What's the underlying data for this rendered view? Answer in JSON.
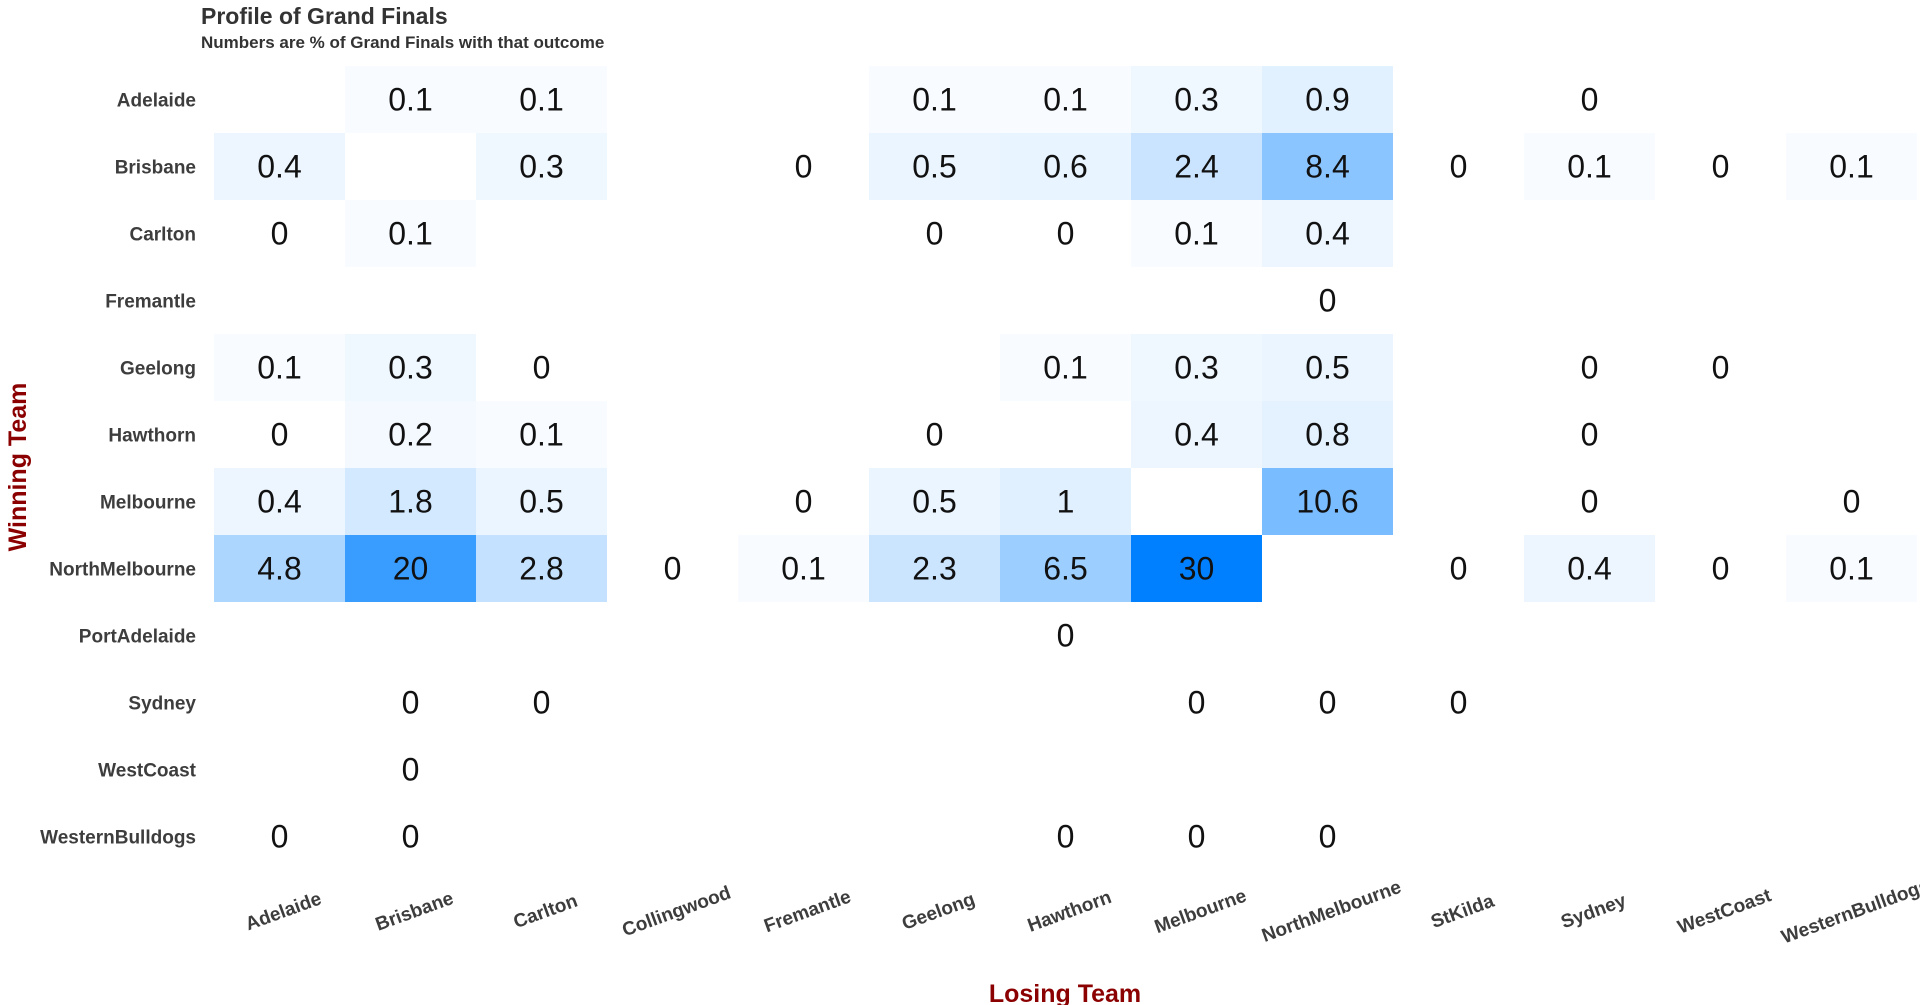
{
  "chart_data": {
    "type": "heatmap",
    "title": "Profile of Grand Finals",
    "subtitle": "Numbers are % of Grand Finals with that outcome",
    "xlabel": "Losing Team",
    "ylabel": "Winning Team",
    "x_categories": [
      "Adelaide",
      "Brisbane",
      "Carlton",
      "Collingwood",
      "Fremantle",
      "Geelong",
      "Hawthorn",
      "Melbourne",
      "NorthMelbourne",
      "StKilda",
      "Sydney",
      "WestCoast",
      "WesternBulldogs"
    ],
    "y_categories": [
      "Adelaide",
      "Brisbane",
      "Carlton",
      "Fremantle",
      "Geelong",
      "Hawthorn",
      "Melbourne",
      "NorthMelbourne",
      "PortAdelaide",
      "Sydney",
      "WestCoast",
      "WesternBulldogs"
    ],
    "color_scale": {
      "low": "#ffffff",
      "high": "#0080ff",
      "min": 0,
      "max": 30
    },
    "cells": [
      {
        "winner": "Adelaide",
        "loser": "Brisbane",
        "value": 0.1
      },
      {
        "winner": "Adelaide",
        "loser": "Carlton",
        "value": 0.1
      },
      {
        "winner": "Adelaide",
        "loser": "Geelong",
        "value": 0.1
      },
      {
        "winner": "Adelaide",
        "loser": "Hawthorn",
        "value": 0.1
      },
      {
        "winner": "Adelaide",
        "loser": "Melbourne",
        "value": 0.3
      },
      {
        "winner": "Adelaide",
        "loser": "NorthMelbourne",
        "value": 0.9
      },
      {
        "winner": "Adelaide",
        "loser": "Sydney",
        "value": 0
      },
      {
        "winner": "Brisbane",
        "loser": "Adelaide",
        "value": 0.4
      },
      {
        "winner": "Brisbane",
        "loser": "Carlton",
        "value": 0.3
      },
      {
        "winner": "Brisbane",
        "loser": "Fremantle",
        "value": 0
      },
      {
        "winner": "Brisbane",
        "loser": "Geelong",
        "value": 0.5
      },
      {
        "winner": "Brisbane",
        "loser": "Hawthorn",
        "value": 0.6
      },
      {
        "winner": "Brisbane",
        "loser": "Melbourne",
        "value": 2.4
      },
      {
        "winner": "Brisbane",
        "loser": "NorthMelbourne",
        "value": 8.4
      },
      {
        "winner": "Brisbane",
        "loser": "StKilda",
        "value": 0
      },
      {
        "winner": "Brisbane",
        "loser": "Sydney",
        "value": 0.1
      },
      {
        "winner": "Brisbane",
        "loser": "WestCoast",
        "value": 0
      },
      {
        "winner": "Brisbane",
        "loser": "WesternBulldogs",
        "value": 0.1
      },
      {
        "winner": "Carlton",
        "loser": "Adelaide",
        "value": 0
      },
      {
        "winner": "Carlton",
        "loser": "Brisbane",
        "value": 0.1
      },
      {
        "winner": "Carlton",
        "loser": "Geelong",
        "value": 0
      },
      {
        "winner": "Carlton",
        "loser": "Hawthorn",
        "value": 0
      },
      {
        "winner": "Carlton",
        "loser": "Melbourne",
        "value": 0.1
      },
      {
        "winner": "Carlton",
        "loser": "NorthMelbourne",
        "value": 0.4
      },
      {
        "winner": "Fremantle",
        "loser": "NorthMelbourne",
        "value": 0
      },
      {
        "winner": "Geelong",
        "loser": "Adelaide",
        "value": 0.1
      },
      {
        "winner": "Geelong",
        "loser": "Brisbane",
        "value": 0.3
      },
      {
        "winner": "Geelong",
        "loser": "Carlton",
        "value": 0
      },
      {
        "winner": "Geelong",
        "loser": "Hawthorn",
        "value": 0.1
      },
      {
        "winner": "Geelong",
        "loser": "Melbourne",
        "value": 0.3
      },
      {
        "winner": "Geelong",
        "loser": "NorthMelbourne",
        "value": 0.5
      },
      {
        "winner": "Geelong",
        "loser": "Sydney",
        "value": 0
      },
      {
        "winner": "Geelong",
        "loser": "WestCoast",
        "value": 0
      },
      {
        "winner": "Hawthorn",
        "loser": "Adelaide",
        "value": 0
      },
      {
        "winner": "Hawthorn",
        "loser": "Brisbane",
        "value": 0.2
      },
      {
        "winner": "Hawthorn",
        "loser": "Carlton",
        "value": 0.1
      },
      {
        "winner": "Hawthorn",
        "loser": "Geelong",
        "value": 0
      },
      {
        "winner": "Hawthorn",
        "loser": "Melbourne",
        "value": 0.4
      },
      {
        "winner": "Hawthorn",
        "loser": "NorthMelbourne",
        "value": 0.8
      },
      {
        "winner": "Hawthorn",
        "loser": "Sydney",
        "value": 0
      },
      {
        "winner": "Melbourne",
        "loser": "Adelaide",
        "value": 0.4
      },
      {
        "winner": "Melbourne",
        "loser": "Brisbane",
        "value": 1.8
      },
      {
        "winner": "Melbourne",
        "loser": "Carlton",
        "value": 0.5
      },
      {
        "winner": "Melbourne",
        "loser": "Fremantle",
        "value": 0
      },
      {
        "winner": "Melbourne",
        "loser": "Geelong",
        "value": 0.5
      },
      {
        "winner": "Melbourne",
        "loser": "Hawthorn",
        "value": 1
      },
      {
        "winner": "Melbourne",
        "loser": "NorthMelbourne",
        "value": 10.6
      },
      {
        "winner": "Melbourne",
        "loser": "Sydney",
        "value": 0
      },
      {
        "winner": "Melbourne",
        "loser": "WesternBulldogs",
        "value": 0
      },
      {
        "winner": "NorthMelbourne",
        "loser": "Adelaide",
        "value": 4.8
      },
      {
        "winner": "NorthMelbourne",
        "loser": "Brisbane",
        "value": 20
      },
      {
        "winner": "NorthMelbourne",
        "loser": "Carlton",
        "value": 2.8
      },
      {
        "winner": "NorthMelbourne",
        "loser": "Collingwood",
        "value": 0
      },
      {
        "winner": "NorthMelbourne",
        "loser": "Fremantle",
        "value": 0.1
      },
      {
        "winner": "NorthMelbourne",
        "loser": "Geelong",
        "value": 2.3
      },
      {
        "winner": "NorthMelbourne",
        "loser": "Hawthorn",
        "value": 6.5
      },
      {
        "winner": "NorthMelbourne",
        "loser": "Melbourne",
        "value": 30
      },
      {
        "winner": "NorthMelbourne",
        "loser": "StKilda",
        "value": 0
      },
      {
        "winner": "NorthMelbourne",
        "loser": "Sydney",
        "value": 0.4
      },
      {
        "winner": "NorthMelbourne",
        "loser": "WestCoast",
        "value": 0
      },
      {
        "winner": "NorthMelbourne",
        "loser": "WesternBulldogs",
        "value": 0.1
      },
      {
        "winner": "PortAdelaide",
        "loser": "Hawthorn",
        "value": 0
      },
      {
        "winner": "Sydney",
        "loser": "Brisbane",
        "value": 0
      },
      {
        "winner": "Sydney",
        "loser": "Carlton",
        "value": 0
      },
      {
        "winner": "Sydney",
        "loser": "Melbourne",
        "value": 0
      },
      {
        "winner": "Sydney",
        "loser": "NorthMelbourne",
        "value": 0
      },
      {
        "winner": "Sydney",
        "loser": "StKilda",
        "value": 0
      },
      {
        "winner": "WestCoast",
        "loser": "Brisbane",
        "value": 0
      },
      {
        "winner": "WesternBulldogs",
        "loser": "Adelaide",
        "value": 0
      },
      {
        "winner": "WesternBulldogs",
        "loser": "Brisbane",
        "value": 0
      },
      {
        "winner": "WesternBulldogs",
        "loser": "Hawthorn",
        "value": 0
      },
      {
        "winner": "WesternBulldogs",
        "loser": "Melbourne",
        "value": 0
      },
      {
        "winner": "WesternBulldogs",
        "loser": "NorthMelbourne",
        "value": 0
      }
    ],
    "grid": false,
    "legend": "none"
  }
}
